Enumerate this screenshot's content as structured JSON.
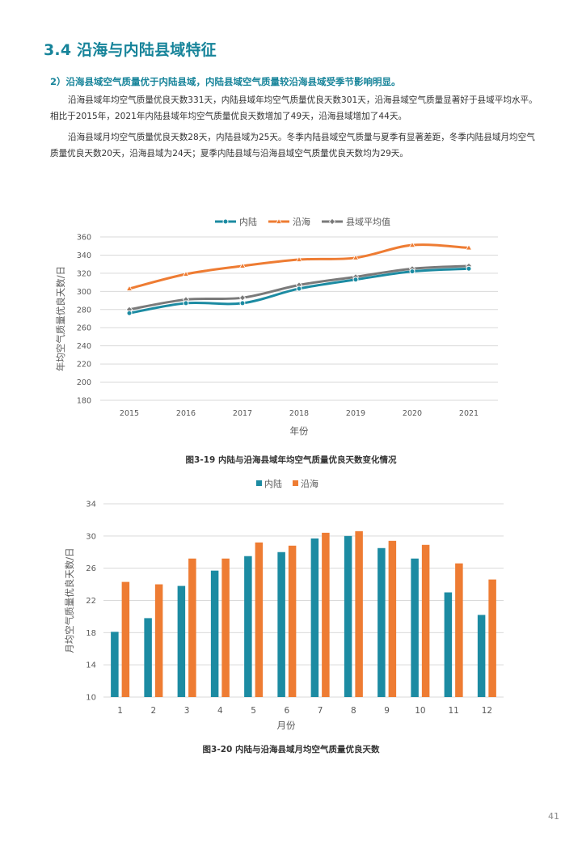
{
  "section": {
    "title": "3.4 沿海与内陆县域特征"
  },
  "subheading": "2）沿海县域空气质量优于内陆县域，内陆县域空气质量较沿海县域受季节影响明显。",
  "paragraphs": [
    "沿海县域年均空气质量优良天数331天，内陆县域年均空气质量优良天数301天，沿海县域空气质量显著好于县域平均水平。相比于2015年，2021年内陆县域年均空气质量优良天数增加了49天，沿海县域增加了44天。",
    "沿海县域月均空气质量优良天数28天，内陆县域为25天。冬季内陆县域空气质量与夏季有显著差距，冬季内陆县域月均空气质量优良天数20天，沿海县域为24天；夏季内陆县域与沿海县域空气质量优良天数均为29天。"
  ],
  "colors": {
    "teal": "#1c8ba2",
    "orange": "#ee7c33",
    "gray": "#7a7a7a",
    "grid": "#d9d9d9",
    "axis_text": "#595959",
    "heading": "#17849a"
  },
  "chart_data": [
    {
      "type": "line",
      "title": "",
      "xlabel": "年份",
      "ylabel": "年均空气质量优良天数/日",
      "x": [
        "2015",
        "2016",
        "2017",
        "2018",
        "2019",
        "2020",
        "2021"
      ],
      "ylim": [
        180,
        360
      ],
      "yticks": [
        180,
        200,
        220,
        240,
        260,
        280,
        300,
        320,
        340,
        360
      ],
      "legend_position": "top",
      "series": [
        {
          "name": "内陆",
          "color": "#1c8ba2",
          "marker": "circle",
          "values": [
            276,
            287,
            287,
            303,
            313,
            322,
            325
          ]
        },
        {
          "name": "沿海",
          "color": "#ee7c33",
          "marker": "triangle",
          "values": [
            303,
            319,
            328,
            335,
            337,
            351,
            348
          ]
        },
        {
          "name": "县域平均值",
          "color": "#7a7a7a",
          "marker": "diamond",
          "values": [
            280,
            291,
            293,
            307,
            316,
            325,
            328
          ]
        }
      ],
      "caption": "图3-19 内陆与沿海县域年均空气质量优良天数变化情况"
    },
    {
      "type": "bar",
      "title": "",
      "xlabel": "月份",
      "ylabel": "月均空气质量优良天数/日",
      "categories": [
        "1",
        "2",
        "3",
        "4",
        "5",
        "6",
        "7",
        "8",
        "9",
        "10",
        "11",
        "12"
      ],
      "ylim": [
        10,
        34
      ],
      "yticks": [
        10,
        14,
        18,
        22,
        26,
        30,
        34
      ],
      "legend_position": "top",
      "series": [
        {
          "name": "内陆",
          "color": "#1c8ba2",
          "values": [
            18.1,
            19.8,
            23.8,
            25.7,
            27.5,
            28.0,
            29.7,
            30.0,
            28.5,
            27.2,
            23.0,
            20.2
          ]
        },
        {
          "name": "沿海",
          "color": "#ee7c33",
          "values": [
            24.3,
            24.0,
            27.2,
            27.2,
            29.2,
            28.8,
            30.4,
            30.6,
            29.4,
            28.9,
            26.6,
            24.6
          ]
        }
      ],
      "caption": "图3-20 内陆与沿海县域月均空气质量优良天数"
    }
  ],
  "page_number": "41"
}
